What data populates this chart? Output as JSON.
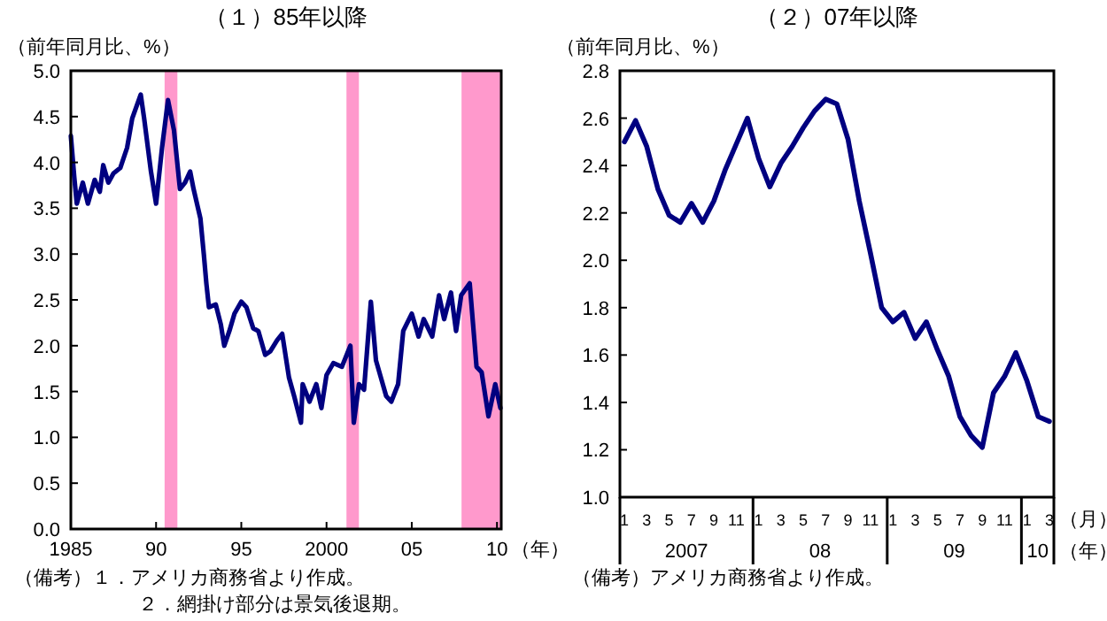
{
  "chart_data": [
    {
      "type": "line",
      "title": "（１）85年以降",
      "ylabel": "（前年同月比、%）",
      "xlabel": "（年）",
      "xlim": [
        1985,
        2010.25
      ],
      "xticks": [
        1985,
        {
          "value": 1990,
          "label": "90"
        },
        {
          "value": 1995,
          "label": "95"
        },
        2000,
        {
          "value": 2005,
          "label": "05"
        },
        {
          "value": 2010,
          "label": "10"
        }
      ],
      "ylim": [
        0,
        5
      ],
      "yticks": [
        {
          "value": 0,
          "label": "0.0"
        },
        {
          "value": 0.5,
          "label": "0.5"
        },
        {
          "value": 1,
          "label": "1.0"
        },
        {
          "value": 1.5,
          "label": "1.5"
        },
        {
          "value": 2,
          "label": "2.0"
        },
        {
          "value": 2.5,
          "label": "2.5"
        },
        {
          "value": 3,
          "label": "3.0"
        },
        {
          "value": 3.5,
          "label": "3.5"
        },
        {
          "value": 4,
          "label": "4.0"
        },
        {
          "value": 4.5,
          "label": "4.5"
        },
        {
          "value": 5,
          "label": "5.0"
        }
      ],
      "bands": [
        {
          "axis": "x",
          "from": 1990.5,
          "to": 1991.25,
          "color": "#ff99cc"
        },
        {
          "axis": "x",
          "from": 2001.17,
          "to": 2001.9,
          "color": "#ff99cc"
        },
        {
          "axis": "x",
          "from": 2007.92,
          "to": 2010.25,
          "color": "#ff99cc"
        }
      ],
      "series": [
        {
          "color": "#000080",
          "x": [
            1985.0,
            1985.2,
            1985.35,
            1985.7,
            1986.0,
            1986.4,
            1986.7,
            1986.9,
            1987.2,
            1987.5,
            1987.9,
            1988.3,
            1988.6,
            1989.1,
            1989.3,
            1989.7,
            1990.0,
            1990.35,
            1990.7,
            1991.05,
            1991.4,
            1991.7,
            1992.0,
            1992.2,
            1992.6,
            1992.8,
            1992.95,
            1993.1,
            1993.5,
            1993.8,
            1994.0,
            1994.3,
            1994.6,
            1995.0,
            1995.3,
            1995.7,
            1996.0,
            1996.4,
            1996.7,
            1997.1,
            1997.4,
            1997.8,
            1998.1,
            1998.5,
            1998.6,
            1999.0,
            1999.4,
            1999.7,
            2000.0,
            2000.4,
            2000.9,
            2001.4,
            2001.6,
            2001.9,
            2002.2,
            2002.6,
            2002.9,
            2003.5,
            2003.8,
            2004.2,
            2004.5,
            2005.0,
            2005.4,
            2005.7,
            2006.2,
            2006.6,
            2006.9,
            2007.3,
            2007.6,
            2007.9,
            2008.4,
            2008.8,
            2009.1,
            2009.5,
            2009.9,
            2010.2
          ],
          "values": [
            4.29,
            3.84,
            3.55,
            3.78,
            3.55,
            3.81,
            3.68,
            3.97,
            3.78,
            3.88,
            3.94,
            4.16,
            4.48,
            4.74,
            4.48,
            3.9,
            3.55,
            4.16,
            4.68,
            4.35,
            3.71,
            3.78,
            3.9,
            3.71,
            3.39,
            3.0,
            2.68,
            2.42,
            2.45,
            2.23,
            2.0,
            2.16,
            2.35,
            2.48,
            2.42,
            2.19,
            2.16,
            1.9,
            1.94,
            2.06,
            2.13,
            1.65,
            1.45,
            1.16,
            1.58,
            1.39,
            1.58,
            1.32,
            1.68,
            1.81,
            1.77,
            2.0,
            1.16,
            1.58,
            1.52,
            2.48,
            1.84,
            1.45,
            1.39,
            1.58,
            2.16,
            2.35,
            2.1,
            2.29,
            2.1,
            2.55,
            2.29,
            2.58,
            2.16,
            2.55,
            2.68,
            1.77,
            1.71,
            1.23,
            1.58,
            1.32
          ]
        }
      ],
      "annotations": [
        "（備考）１．アメリカ商務省より作成。",
        "２．網掛け部分は景気後退期。"
      ]
    },
    {
      "type": "line",
      "title": "（２）07年以降",
      "ylabel": "（前年同月比、%）",
      "xlabel": "（月）",
      "categories": [
        "1",
        null,
        "3",
        null,
        "5",
        null,
        "7",
        null,
        "9",
        null,
        "11",
        null,
        "1",
        null,
        "3",
        null,
        "5",
        null,
        "7",
        null,
        "9",
        null,
        "11",
        null,
        "1",
        null,
        "3",
        null,
        "5",
        null,
        "7",
        null,
        "9",
        null,
        "11",
        null,
        "1",
        null,
        "3"
      ],
      "ylim": [
        1,
        2.8
      ],
      "yticks": [
        {
          "value": 1,
          "label": "1.0"
        },
        {
          "value": 1.2,
          "label": "1.2"
        },
        {
          "value": 1.4,
          "label": "1.4"
        },
        {
          "value": 1.6,
          "label": "1.6"
        },
        {
          "value": 1.8,
          "label": "1.8"
        },
        {
          "value": 2,
          "label": "2.0"
        },
        {
          "value": 2.2,
          "label": "2.2"
        },
        {
          "value": 2.4,
          "label": "2.4"
        },
        {
          "value": 2.6,
          "label": "2.6"
        },
        {
          "value": 2.8,
          "label": "2.8"
        }
      ],
      "series": [
        {
          "color": "#000080",
          "values": [
            2.5,
            2.59,
            2.48,
            2.3,
            2.19,
            2.16,
            2.24,
            2.16,
            2.25,
            2.38,
            2.49,
            2.6,
            2.43,
            2.31,
            2.41,
            2.48,
            2.56,
            2.63,
            2.68,
            2.66,
            2.51,
            2.25,
            2.03,
            1.8,
            1.74,
            1.78,
            1.67,
            1.74,
            1.62,
            1.51,
            1.34,
            1.26,
            1.21,
            1.44,
            1.51,
            1.61,
            1.49,
            1.34,
            1.32
          ]
        }
      ],
      "annotations": [
        "2007",
        "08",
        "09",
        "10",
        "（年）",
        "（備考）アメリカ商務省より作成。"
      ]
    }
  ]
}
